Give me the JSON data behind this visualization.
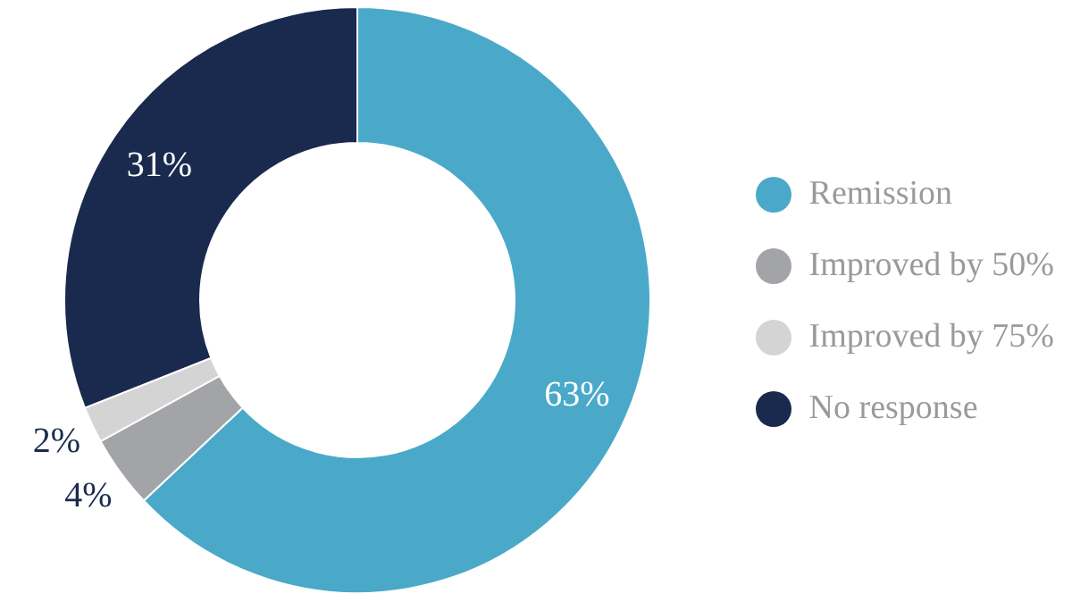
{
  "chart_data": {
    "type": "donut",
    "categories": [
      "Remission",
      "Improved by 50%",
      "Improved by 75%",
      "No response"
    ],
    "values": [
      63,
      4,
      2,
      31
    ],
    "colors": [
      "#4aa9c9",
      "#a3a4a8",
      "#d4d4d4",
      "#1a2a4e"
    ],
    "value_labels": [
      "63%",
      "4%",
      "2%",
      "31%"
    ],
    "legend": "right"
  }
}
